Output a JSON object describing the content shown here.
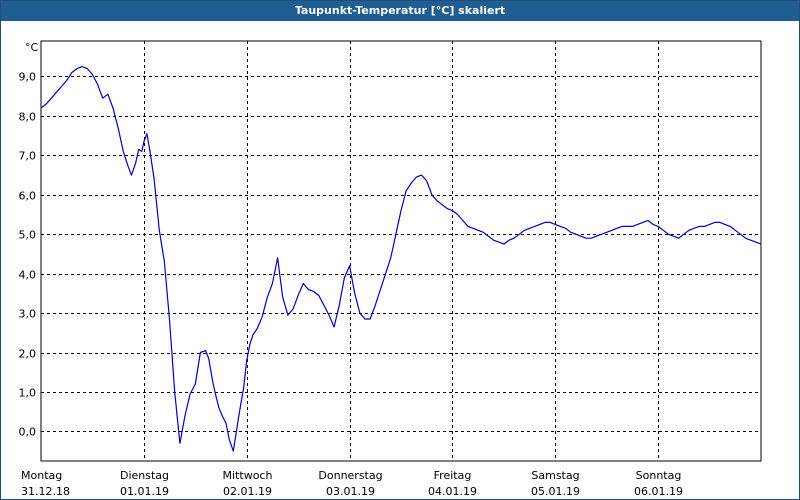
{
  "window": {
    "title": "Taupunkt-Temperatur [°C] skaliert"
  },
  "chart_data": {
    "type": "line",
    "title": "Taupunkt-Temperatur [°C] skaliert",
    "ylabel": "°C",
    "xlabel": "",
    "ylim": [
      -0.75,
      9.9
    ],
    "xlim": [
      0,
      7
    ],
    "grid": true,
    "yticks": [
      "9,0",
      "8,0",
      "7,0",
      "6,0",
      "5,0",
      "4,0",
      "3,0",
      "2,0",
      "1,0",
      "0,0"
    ],
    "ytick_values": [
      9,
      8,
      7,
      6,
      5,
      4,
      3,
      2,
      1,
      0
    ],
    "xticks": [
      {
        "day": "Montag",
        "date": "31.12.18"
      },
      {
        "day": "Dienstag",
        "date": "01.01.19"
      },
      {
        "day": "Mittwoch",
        "date": "02.01.19"
      },
      {
        "day": "Donnerstag",
        "date": "03.01.19"
      },
      {
        "day": "Freitag",
        "date": "04.01.19"
      },
      {
        "day": "Samstag",
        "date": "05.01.19"
      },
      {
        "day": "Sonntag",
        "date": "06.01.19"
      }
    ],
    "line_color": "#0000cc",
    "series": [
      {
        "x": [
          0.0,
          0.05,
          0.1,
          0.15,
          0.2,
          0.25,
          0.3,
          0.35,
          0.4,
          0.45,
          0.5,
          0.55,
          0.6,
          0.65,
          0.7,
          0.75,
          0.8,
          0.85,
          0.88,
          0.92,
          0.95,
          0.98,
          1.0,
          1.03,
          1.06,
          1.1,
          1.15,
          1.2,
          1.25,
          1.3,
          1.35,
          1.4,
          1.45,
          1.5,
          1.55,
          1.6,
          1.63,
          1.67,
          1.7,
          1.73,
          1.77,
          1.8,
          1.83,
          1.87,
          1.9,
          1.93,
          1.97,
          2.0,
          2.03,
          2.06,
          2.1,
          2.15,
          2.2,
          2.25,
          2.3,
          2.35,
          2.4,
          2.45,
          2.5,
          2.55,
          2.6,
          2.65,
          2.7,
          2.75,
          2.8,
          2.85,
          2.9,
          2.95,
          3.0,
          3.05,
          3.1,
          3.15,
          3.2,
          3.25,
          3.3,
          3.35,
          3.4,
          3.45,
          3.5,
          3.55,
          3.6,
          3.65,
          3.7,
          3.75,
          3.8,
          3.85,
          3.9,
          3.95,
          4.0,
          4.05,
          4.1,
          4.15,
          4.2,
          4.25,
          4.3,
          4.35,
          4.4,
          4.45,
          4.5,
          4.55,
          4.6,
          4.65,
          4.7,
          4.75,
          4.8,
          4.85,
          4.9,
          4.95,
          5.0,
          5.05,
          5.1,
          5.15,
          5.2,
          5.25,
          5.3,
          5.35,
          5.4,
          5.45,
          5.5,
          5.55,
          5.6,
          5.65,
          5.7,
          5.75,
          5.8,
          5.85,
          5.9,
          5.95,
          6.0,
          6.05,
          6.1,
          6.15,
          6.2,
          6.25,
          6.3,
          6.35,
          6.4,
          6.45,
          6.5,
          6.55,
          6.6,
          6.65,
          6.7,
          6.75,
          6.8,
          6.85,
          6.9,
          6.95,
          7.0
        ],
        "values": [
          8.2,
          8.3,
          8.45,
          8.6,
          8.75,
          8.9,
          9.1,
          9.2,
          9.25,
          9.2,
          9.05,
          8.8,
          8.45,
          8.55,
          8.2,
          7.7,
          7.1,
          6.7,
          6.5,
          6.8,
          7.15,
          7.1,
          7.35,
          7.55,
          7.1,
          6.4,
          5.1,
          4.3,
          2.8,
          1.0,
          -0.3,
          0.4,
          0.95,
          1.2,
          2.0,
          2.05,
          1.85,
          1.25,
          0.9,
          0.6,
          0.35,
          0.2,
          -0.2,
          -0.5,
          0.0,
          0.5,
          1.1,
          1.8,
          2.2,
          2.45,
          2.6,
          2.9,
          3.4,
          3.75,
          4.4,
          3.4,
          2.95,
          3.1,
          3.45,
          3.75,
          3.6,
          3.55,
          3.45,
          3.2,
          2.95,
          2.65,
          3.2,
          3.9,
          4.2,
          3.5,
          3.0,
          2.85,
          2.85,
          3.2,
          3.6,
          4.0,
          4.4,
          5.0,
          5.6,
          6.1,
          6.3,
          6.45,
          6.5,
          6.35,
          6.0,
          5.85,
          5.75,
          5.65,
          5.6,
          5.5,
          5.35,
          5.2,
          5.15,
          5.1,
          5.05,
          4.95,
          4.85,
          4.8,
          4.75,
          4.85,
          4.9,
          5.0,
          5.1,
          5.15,
          5.2,
          5.25,
          5.3,
          5.3,
          5.25,
          5.2,
          5.15,
          5.05,
          5.0,
          4.95,
          4.9,
          4.9,
          4.95,
          5.0,
          5.05,
          5.1,
          5.15,
          5.2,
          5.2,
          5.2,
          5.25,
          5.3,
          5.35,
          5.25,
          5.2,
          5.1,
          5.0,
          4.95,
          4.9,
          5.0,
          5.1,
          5.15,
          5.2,
          5.2,
          5.25,
          5.3,
          5.3,
          5.25,
          5.2,
          5.1,
          5.0,
          4.9,
          4.85,
          4.8,
          4.75
        ]
      }
    ]
  }
}
